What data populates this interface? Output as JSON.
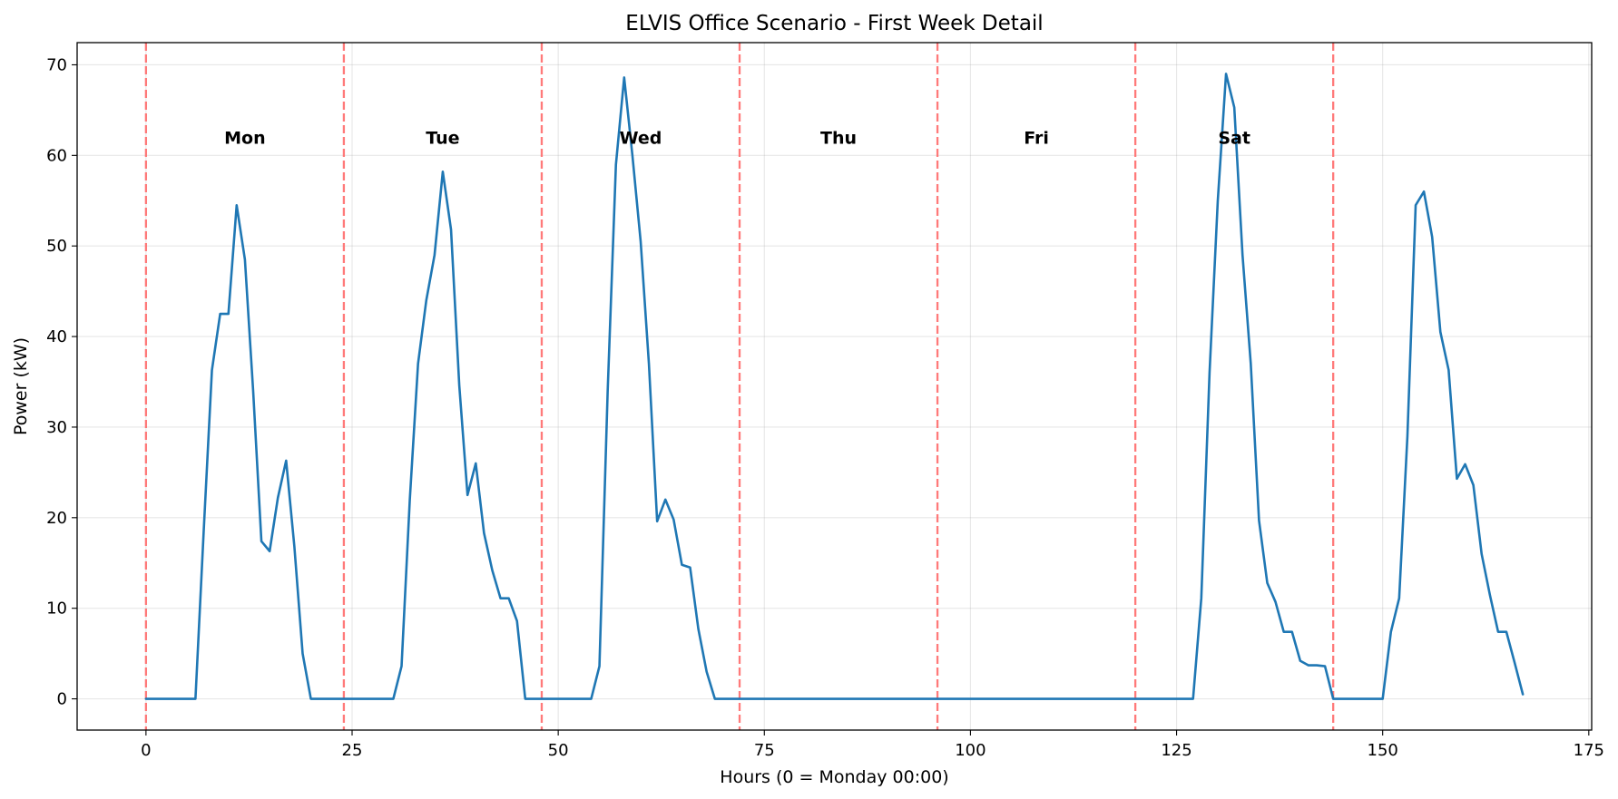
{
  "chart_data": {
    "type": "line",
    "title": "ELVIS Office Scenario - First Week Detail",
    "xlabel": "Hours (0 = Monday 00:00)",
    "ylabel": "Power (kW)",
    "xlim": [
      -8.35,
      175.35
    ],
    "ylim": [
      -3.45,
      72.45
    ],
    "x_ticks": [
      0,
      25,
      50,
      75,
      100,
      125,
      150,
      175
    ],
    "y_ticks": [
      0,
      10,
      20,
      30,
      40,
      50,
      60,
      70
    ],
    "grid": true,
    "line_color": "#1f77b4",
    "day_separator_color": "#ff6b6b",
    "day_separators": [
      0,
      24,
      48,
      72,
      96,
      120,
      144
    ],
    "day_labels": [
      {
        "x": 12,
        "y": 62,
        "text": "Mon"
      },
      {
        "x": 36,
        "y": 62,
        "text": "Tue"
      },
      {
        "x": 60,
        "y": 62,
        "text": "Wed"
      },
      {
        "x": 84,
        "y": 62,
        "text": "Thu"
      },
      {
        "x": 108,
        "y": 62,
        "text": "Fri"
      },
      {
        "x": 132,
        "y": 62,
        "text": "Sat"
      }
    ],
    "series": [
      {
        "x": [
          0,
          1,
          2,
          3,
          4,
          5,
          6,
          7,
          8,
          9,
          10,
          11,
          12,
          13,
          14,
          15,
          16,
          17,
          18,
          19,
          20,
          21,
          22,
          23,
          24,
          25,
          26,
          27,
          28,
          29,
          30,
          31,
          32,
          33,
          34,
          35,
          36,
          37,
          38,
          39,
          40,
          41,
          42,
          43,
          44,
          45,
          46,
          47,
          48,
          49,
          50,
          51,
          52,
          53,
          54,
          55,
          56,
          57,
          58,
          59,
          60,
          61,
          62,
          63,
          64,
          65,
          66,
          67,
          68,
          69,
          70,
          71,
          72,
          73,
          74,
          75,
          76,
          77,
          78,
          79,
          80,
          81,
          82,
          83,
          84,
          85,
          86,
          87,
          88,
          89,
          90,
          91,
          92,
          93,
          94,
          95,
          96,
          97,
          98,
          99,
          100,
          101,
          102,
          103,
          104,
          105,
          106,
          107,
          108,
          109,
          110,
          111,
          112,
          113,
          114,
          115,
          116,
          117,
          118,
          119,
          120,
          121,
          122,
          123,
          124,
          125,
          126,
          127,
          128,
          129,
          130,
          131,
          132,
          133,
          134,
          135,
          136,
          137,
          138,
          139,
          140,
          141,
          142,
          143,
          144,
          145,
          146,
          147,
          148,
          149,
          150,
          151,
          152,
          153,
          154,
          155,
          156,
          157,
          158,
          159,
          160,
          161,
          162,
          163,
          164,
          165,
          166,
          167
        ],
        "y": [
          0,
          0,
          0,
          0,
          0,
          0,
          0,
          18.5,
          36.3,
          42.5,
          42.5,
          54.5,
          48.5,
          34,
          17.4,
          16.3,
          22.2,
          26.3,
          16.8,
          5,
          0,
          0,
          0,
          0,
          0,
          0,
          0,
          0,
          0,
          0,
          0,
          3.6,
          22,
          37,
          44,
          49,
          58.2,
          51.8,
          34.6,
          22.5,
          26,
          18.3,
          14.2,
          11.1,
          11.1,
          8.6,
          0,
          0,
          0,
          0,
          0,
          0,
          0,
          0,
          0,
          3.6,
          34,
          59,
          68.6,
          60,
          50.5,
          37,
          19.6,
          22,
          19.8,
          14.8,
          14.5,
          7.7,
          3,
          0,
          0,
          0,
          0,
          0,
          0,
          0,
          0,
          0,
          0,
          0,
          0,
          0,
          0,
          0,
          0,
          0,
          0,
          0,
          0,
          0,
          0,
          0,
          0,
          0,
          0,
          0,
          0,
          0,
          0,
          0,
          0,
          0,
          0,
          0,
          0,
          0,
          0,
          0,
          0,
          0,
          0,
          0,
          0,
          0,
          0,
          0,
          0,
          0,
          0,
          0,
          0,
          0,
          0,
          0,
          0,
          0,
          0,
          0,
          11.1,
          36,
          55,
          69,
          65.3,
          49,
          37,
          19.7,
          12.8,
          10.7,
          7.4,
          7.4,
          4.2,
          3.7,
          3.7,
          3.6,
          0,
          0,
          0,
          0,
          0,
          0,
          0,
          7.4,
          11.1,
          29,
          54.5,
          56,
          51,
          40.5,
          36.3,
          24.3,
          25.9,
          23.6,
          16,
          11.5,
          7.4,
          7.4,
          4,
          0.5
        ]
      }
    ]
  }
}
